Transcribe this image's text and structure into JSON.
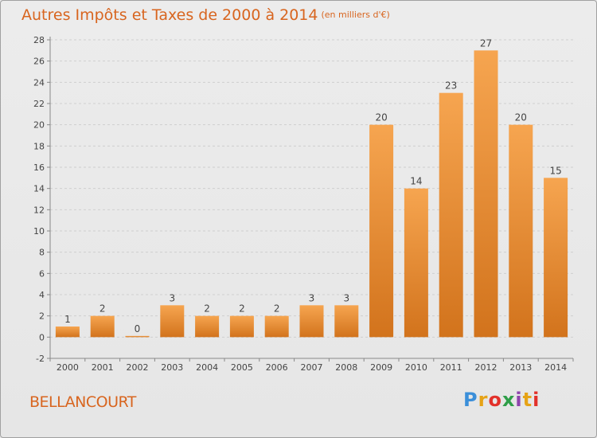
{
  "header": {
    "title": "Autres Impôts et Taxes de 2000 à 2014",
    "unit": "(en milliers d'€)"
  },
  "footer": {
    "city": "BELLANCOURT",
    "logo": "Proxiti"
  },
  "colors": {
    "accent": "#d8651f",
    "bar_light": "#f6a550",
    "bar_dark": "#d2731c"
  },
  "chart_data": {
    "type": "bar",
    "title": "Autres Impôts et Taxes de 2000 à 2014",
    "subtitle": "(en milliers d'€)",
    "xlabel": "",
    "ylabel": "",
    "categories": [
      "2000",
      "2001",
      "2002",
      "2003",
      "2004",
      "2005",
      "2006",
      "2007",
      "2008",
      "2009",
      "2010",
      "2011",
      "2012",
      "2013",
      "2014"
    ],
    "values": [
      1,
      2,
      0,
      3,
      2,
      2,
      2,
      3,
      3,
      20,
      14,
      23,
      27,
      20,
      15
    ],
    "data_labels": [
      "1",
      "2",
      "0",
      "3",
      "2",
      "2",
      "2",
      "3",
      "3",
      "20",
      "14",
      "23",
      "27",
      "20",
      "15"
    ],
    "yticks": [
      "-2",
      "0",
      "2",
      "4",
      "6",
      "8",
      "10",
      "12",
      "14",
      "16",
      "18",
      "20",
      "22",
      "24",
      "26",
      "28"
    ],
    "ylim": [
      -2,
      28
    ],
    "grid": true,
    "legend": "none"
  }
}
